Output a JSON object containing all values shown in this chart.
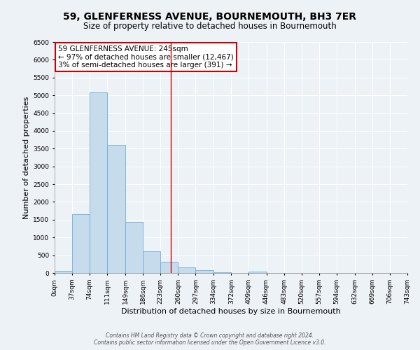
{
  "title": "59, GLENFERNESS AVENUE, BOURNEMOUTH, BH3 7ER",
  "subtitle": "Size of property relative to detached houses in Bournemouth",
  "xlabel": "Distribution of detached houses by size in Bournemouth",
  "ylabel": "Number of detached properties",
  "footnote1": "Contains HM Land Registry data © Crown copyright and database right 2024.",
  "footnote2": "Contains public sector information licensed under the Open Government Licence v3.0.",
  "annotation_line1": "59 GLENFERNESS AVENUE: 245sqm",
  "annotation_line2": "← 97% of detached houses are smaller (12,467)",
  "annotation_line3": "3% of semi-detached houses are larger (391) →",
  "bar_edges": [
    0,
    37,
    74,
    111,
    149,
    186,
    223,
    260,
    297,
    334,
    372,
    409,
    446,
    483,
    520,
    557,
    594,
    632,
    669,
    706,
    743
  ],
  "bar_heights": [
    60,
    1650,
    5080,
    3600,
    1430,
    620,
    310,
    150,
    80,
    20,
    5,
    40,
    0,
    0,
    0,
    0,
    0,
    0,
    0,
    0
  ],
  "bar_color": "#c6dced",
  "bar_edge_color": "#6aaed6",
  "property_line_x": 245,
  "ylim": [
    0,
    6500
  ],
  "yticks": [
    0,
    500,
    1000,
    1500,
    2000,
    2500,
    3000,
    3500,
    4000,
    4500,
    5000,
    5500,
    6000,
    6500
  ],
  "background_color": "#edf2f7",
  "grid_color": "#ffffff",
  "annotation_box_color": "#cc0000",
  "title_fontsize": 10,
  "subtitle_fontsize": 8.5,
  "axis_label_fontsize": 8,
  "tick_fontsize": 6.5,
  "annotation_fontsize": 7.5
}
